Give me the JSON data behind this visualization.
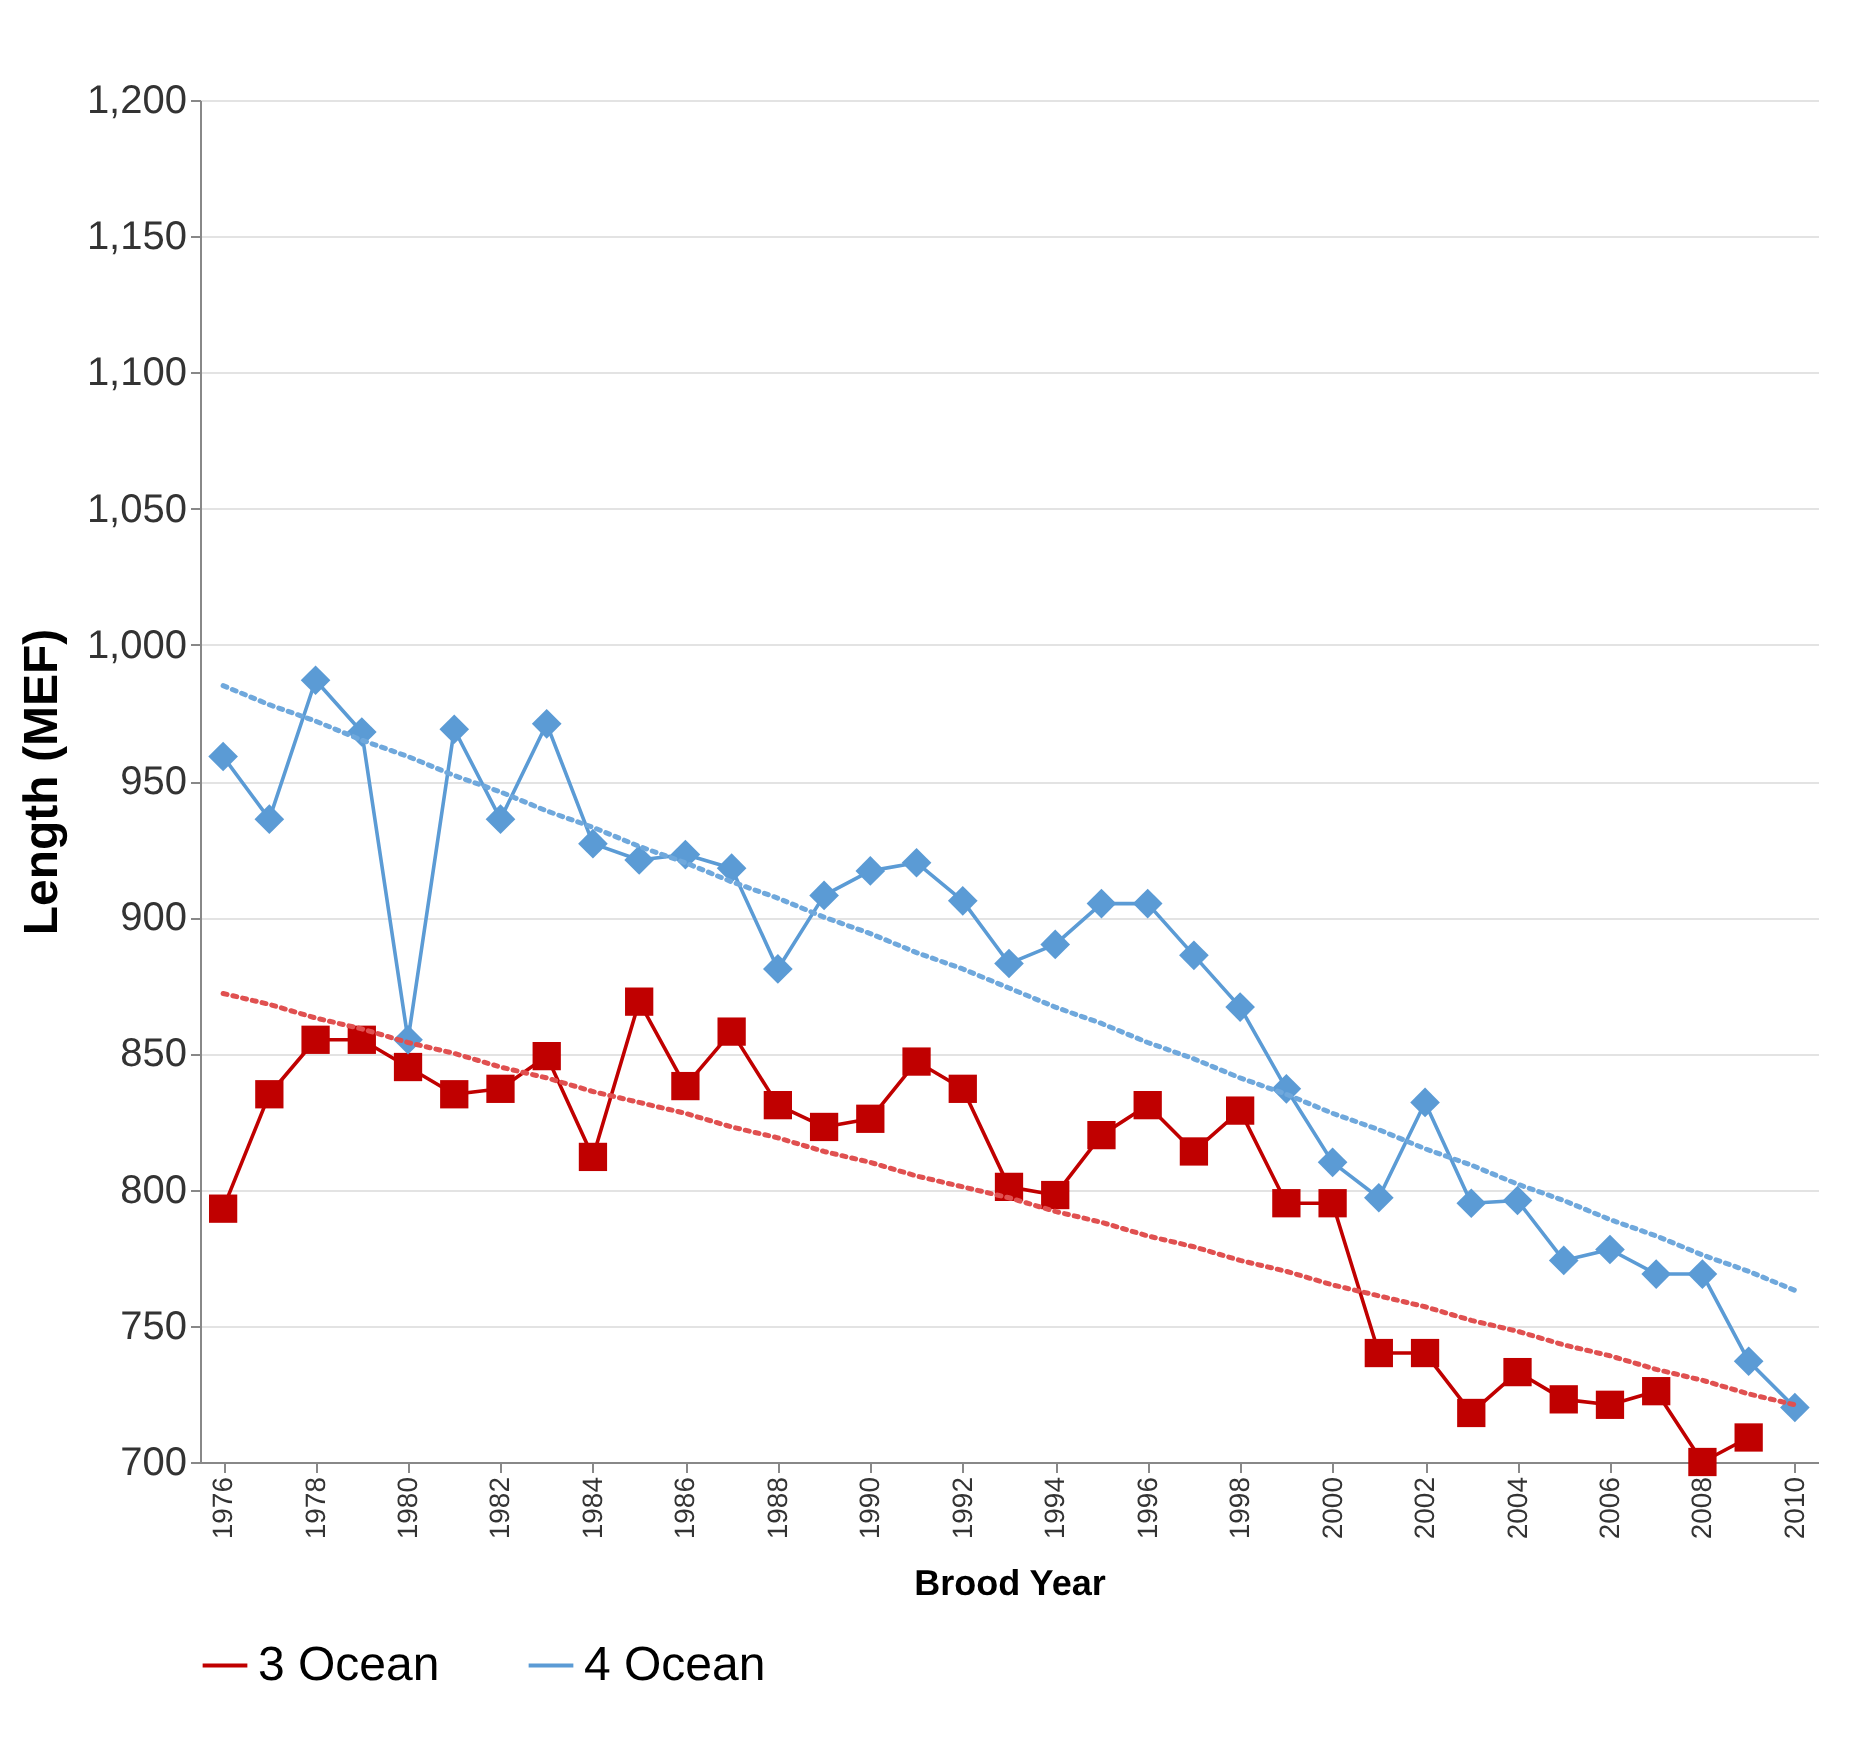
{
  "chart_data": {
    "type": "line",
    "xlabel": "Brood Year",
    "ylabel": "Length (MEF)",
    "x": [
      1976,
      1977,
      1978,
      1979,
      1980,
      1981,
      1982,
      1983,
      1984,
      1985,
      1986,
      1987,
      1988,
      1989,
      1990,
      1991,
      1992,
      1993,
      1994,
      1995,
      1996,
      1997,
      1998,
      1999,
      2000,
      2001,
      2002,
      2003,
      2004,
      2005,
      2006,
      2007,
      2008,
      2009,
      2010
    ],
    "xlim": [
      1975.5,
      2010.5
    ],
    "xticks": [
      1976,
      1978,
      1980,
      1982,
      1984,
      1986,
      1988,
      1990,
      1992,
      1994,
      1996,
      1998,
      2000,
      2002,
      2004,
      2006,
      2008,
      2010
    ],
    "ylim": [
      700,
      1200
    ],
    "yticks": [
      700,
      750,
      800,
      850,
      900,
      950,
      {
        "value": 1000,
        "label": "1,000"
      },
      {
        "value": 1050,
        "label": "1,050"
      },
      {
        "value": 1100,
        "label": "1,100"
      },
      {
        "value": 1150,
        "label": "1,150"
      },
      {
        "value": 1200,
        "label": "1,200"
      }
    ],
    "grid": "y",
    "legend": "bottom",
    "line_style": "solid",
    "series": [
      {
        "name": "3 Ocean",
        "color": "#c00000",
        "marker": "square",
        "values": [
          793,
          835,
          855,
          855,
          845,
          835,
          837,
          849,
          812,
          869,
          838,
          858,
          831,
          823,
          826,
          847,
          837,
          801,
          798,
          820,
          831,
          814,
          829,
          795,
          795,
          740,
          740,
          718,
          733,
          723,
          721,
          726,
          700,
          709,
          null
        ]
      },
      {
        "name": "4 Ocean",
        "color": "#5b9bd5",
        "marker": "diamond",
        "values": [
          959,
          936,
          987,
          968,
          855,
          969,
          936,
          971,
          927,
          921,
          923,
          918,
          881,
          908,
          917,
          920,
          906,
          883,
          890,
          905,
          905,
          886,
          867,
          837,
          810,
          797,
          832,
          795,
          796,
          774,
          778,
          769,
          769,
          737,
          720
        ]
      },
      {
        "type": "line",
        "color": "#e05050",
        "marker": "none",
        "line_style": "dotted",
        "values": [
          872,
          868,
          863,
          859,
          854,
          850,
          845,
          841,
          836,
          832,
          828,
          823,
          819,
          814,
          810,
          805,
          801,
          797,
          792,
          788,
          783,
          779,
          774,
          770,
          765,
          761,
          757,
          752,
          748,
          743,
          739,
          734,
          730,
          725,
          721
        ]
      },
      {
        "type": "line",
        "color": "#6fa8dc",
        "marker": "none",
        "line_style": "dotted",
        "values": [
          985,
          978,
          972,
          965,
          959,
          952,
          946,
          939,
          933,
          926,
          920,
          913,
          907,
          900,
          894,
          887,
          881,
          874,
          867,
          861,
          854,
          848,
          841,
          835,
          828,
          822,
          815,
          809,
          802,
          796,
          789,
          783,
          776,
          770,
          763
        ]
      }
    ]
  }
}
